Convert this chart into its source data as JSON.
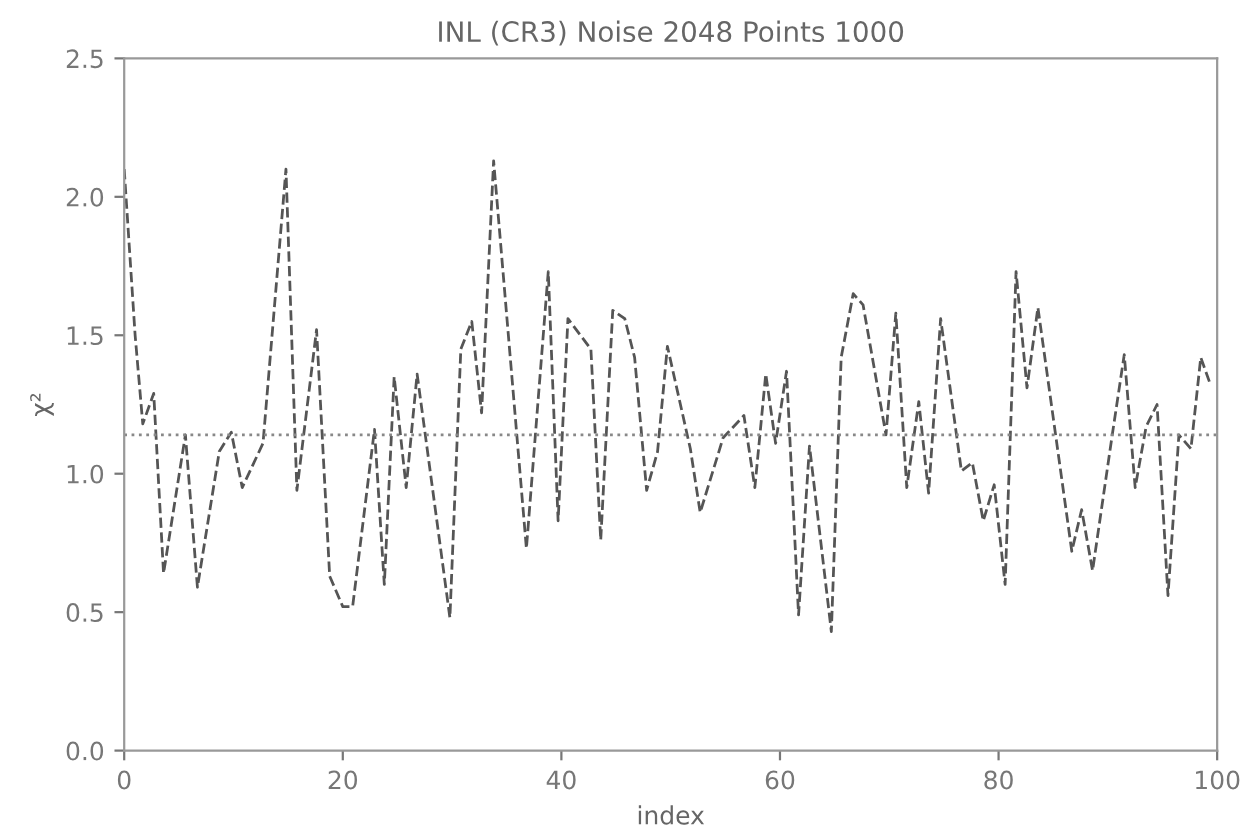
{
  "chart_data": {
    "type": "line",
    "title": "INL (CR3) Noise 2048 Points 1000",
    "xlabel": "index",
    "ylabel": "χ²",
    "x": [
      0,
      1,
      1.7,
      2.7,
      3.6,
      5.6,
      6.7,
      8.7,
      9.8,
      10.8,
      12.7,
      14.8,
      15.8,
      17.6,
      18.8,
      20,
      20.9,
      22.9,
      23.8,
      24.7,
      25.8,
      26.8,
      29.8,
      30.8,
      31.8,
      32.7,
      33.8,
      36.8,
      38.8,
      39.7,
      40.6,
      42.7,
      43.6,
      44.7,
      45.8,
      46.7,
      47.8,
      48.8,
      49.7,
      51.8,
      52.7,
      54.8,
      56.7,
      57.7,
      58.7,
      59.6,
      60.6,
      61.7,
      62.7,
      64.7,
      65.6,
      66.7,
      67.6,
      69.7,
      70.6,
      71.6,
      72.7,
      73.6,
      74.7,
      76.6,
      77.6,
      78.6,
      79.6,
      80.6,
      81.6,
      82.6,
      83.6,
      86.7,
      87.6,
      88.6,
      90.4,
      91.5,
      92.5,
      93.5,
      94.5,
      95.5,
      96.5,
      97.6,
      98.5,
      99.4
    ],
    "series": [
      {
        "color": "#555555",
        "values": [
          2.1,
          1.5,
          1.18,
          1.29,
          0.64,
          1.14,
          0.59,
          1.08,
          1.15,
          0.95,
          1.11,
          2.1,
          0.94,
          1.52,
          0.63,
          0.52,
          0.52,
          1.16,
          0.6,
          1.35,
          0.95,
          1.36,
          0.48,
          1.45,
          1.55,
          1.22,
          2.13,
          0.73,
          1.73,
          0.83,
          1.56,
          1.45,
          0.76,
          1.59,
          1.56,
          1.42,
          0.94,
          1.08,
          1.46,
          1.09,
          0.86,
          1.13,
          1.21,
          0.95,
          1.36,
          1.11,
          1.37,
          0.49,
          1.1,
          0.43,
          1.42,
          1.65,
          1.61,
          1.14,
          1.58,
          0.95,
          1.26,
          0.93,
          1.56,
          1.01,
          1.04,
          0.83,
          0.96,
          0.6,
          1.73,
          1.31,
          1.6,
          0.72,
          0.87,
          0.65,
          1.14,
          1.43,
          0.95,
          1.17,
          1.25,
          0.56,
          1.14,
          1.09,
          1.42,
          1.32
        ]
      }
    ],
    "xlim": [
      0,
      100
    ],
    "xticks": [
      0,
      20,
      40,
      60,
      80,
      100
    ],
    "ylim": [
      0,
      2.5
    ],
    "yticks": [
      {
        "value": 0,
        "label": "0.0"
      },
      {
        "value": 0.5,
        "label": "0.5"
      },
      {
        "value": 1,
        "label": "1.0"
      },
      {
        "value": 1.5,
        "label": "1.5"
      },
      {
        "value": 2,
        "label": "2.0"
      },
      {
        "value": 2.5,
        "label": "2.5"
      }
    ],
    "ref_lines": [
      {
        "axis": "y",
        "value": 1.14,
        "line_style": "dotted",
        "color": "#888888"
      }
    ],
    "line_style": "dashed",
    "grid": false
  }
}
